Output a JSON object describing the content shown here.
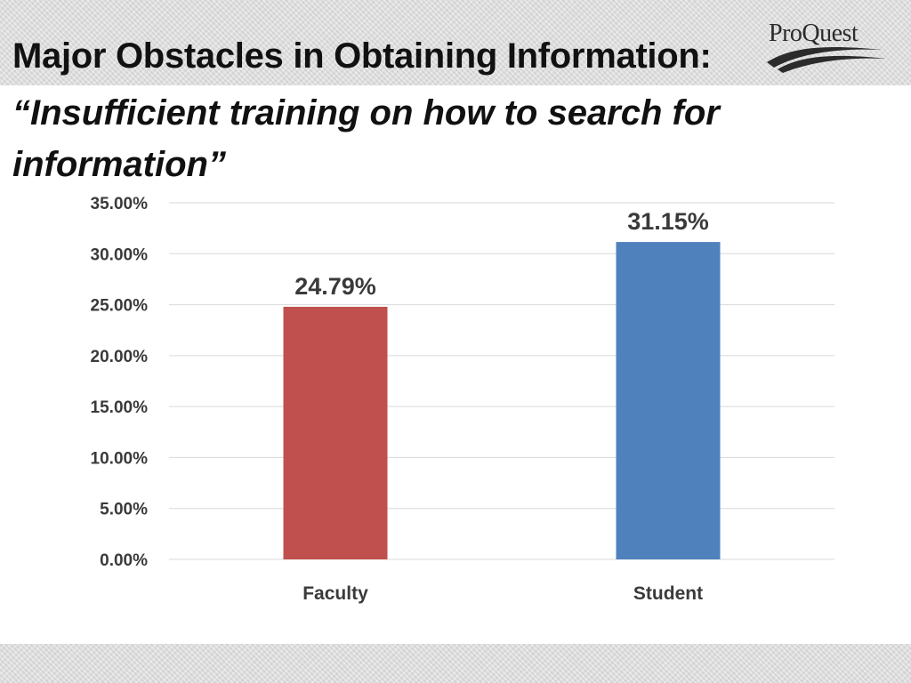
{
  "slide": {
    "title": "Major Obstacles in Obtaining Information:",
    "subtitle": "“Insufficient training on how to search for information”"
  },
  "logo": {
    "text": "ProQuest",
    "icon": "proquest-swoosh-icon"
  },
  "colors": {
    "faculty": "#C0504D",
    "student": "#4F81BD",
    "grid": "#d9d9d9",
    "text": "#3a3a3a"
  },
  "chart_data": {
    "type": "bar",
    "categories": [
      "Faculty",
      "Student"
    ],
    "values": [
      24.79,
      31.15
    ],
    "data_labels": [
      "24.79%",
      "31.15%"
    ],
    "colors": [
      "#C0504D",
      "#4F81BD"
    ],
    "ylim": [
      0,
      35
    ],
    "ytick_values": [
      0,
      5,
      10,
      15,
      20,
      25,
      30,
      35
    ],
    "ytick_labels": [
      "0.00%",
      "5.00%",
      "10.00%",
      "15.00%",
      "20.00%",
      "25.00%",
      "30.00%",
      "35.00%"
    ],
    "grid": true,
    "legend": false
  }
}
